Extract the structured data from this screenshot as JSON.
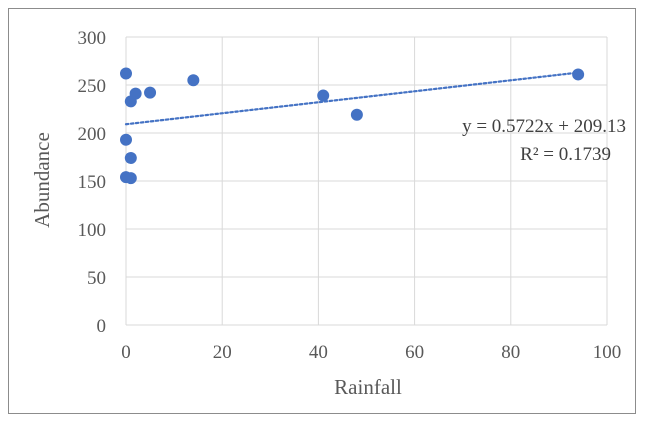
{
  "chart_data": {
    "type": "scatter",
    "xlabel": "Rainfall",
    "ylabel": "Abundance",
    "xlim": [
      0,
      100
    ],
    "ylim": [
      0,
      300
    ],
    "xticks": [
      0,
      20,
      40,
      60,
      80,
      100
    ],
    "yticks": [
      0,
      50,
      100,
      150,
      200,
      250,
      300
    ],
    "grid": true,
    "marker_color": "#4472c4",
    "trendline_color": "#4472c4",
    "points": [
      {
        "x": 0,
        "y": 262
      },
      {
        "x": 0,
        "y": 193
      },
      {
        "x": 0,
        "y": 154
      },
      {
        "x": 1,
        "y": 153
      },
      {
        "x": 1,
        "y": 174
      },
      {
        "x": 1,
        "y": 233
      },
      {
        "x": 2,
        "y": 241
      },
      {
        "x": 5,
        "y": 242
      },
      {
        "x": 14,
        "y": 255
      },
      {
        "x": 41,
        "y": 239
      },
      {
        "x": 48,
        "y": 219
      },
      {
        "x": 94,
        "y": 261
      }
    ],
    "trendline": {
      "slope": 0.5722,
      "intercept": 209.13,
      "equation": "y = 0.5722x + 209.13",
      "r_squared": "R² = 0.1739"
    }
  }
}
